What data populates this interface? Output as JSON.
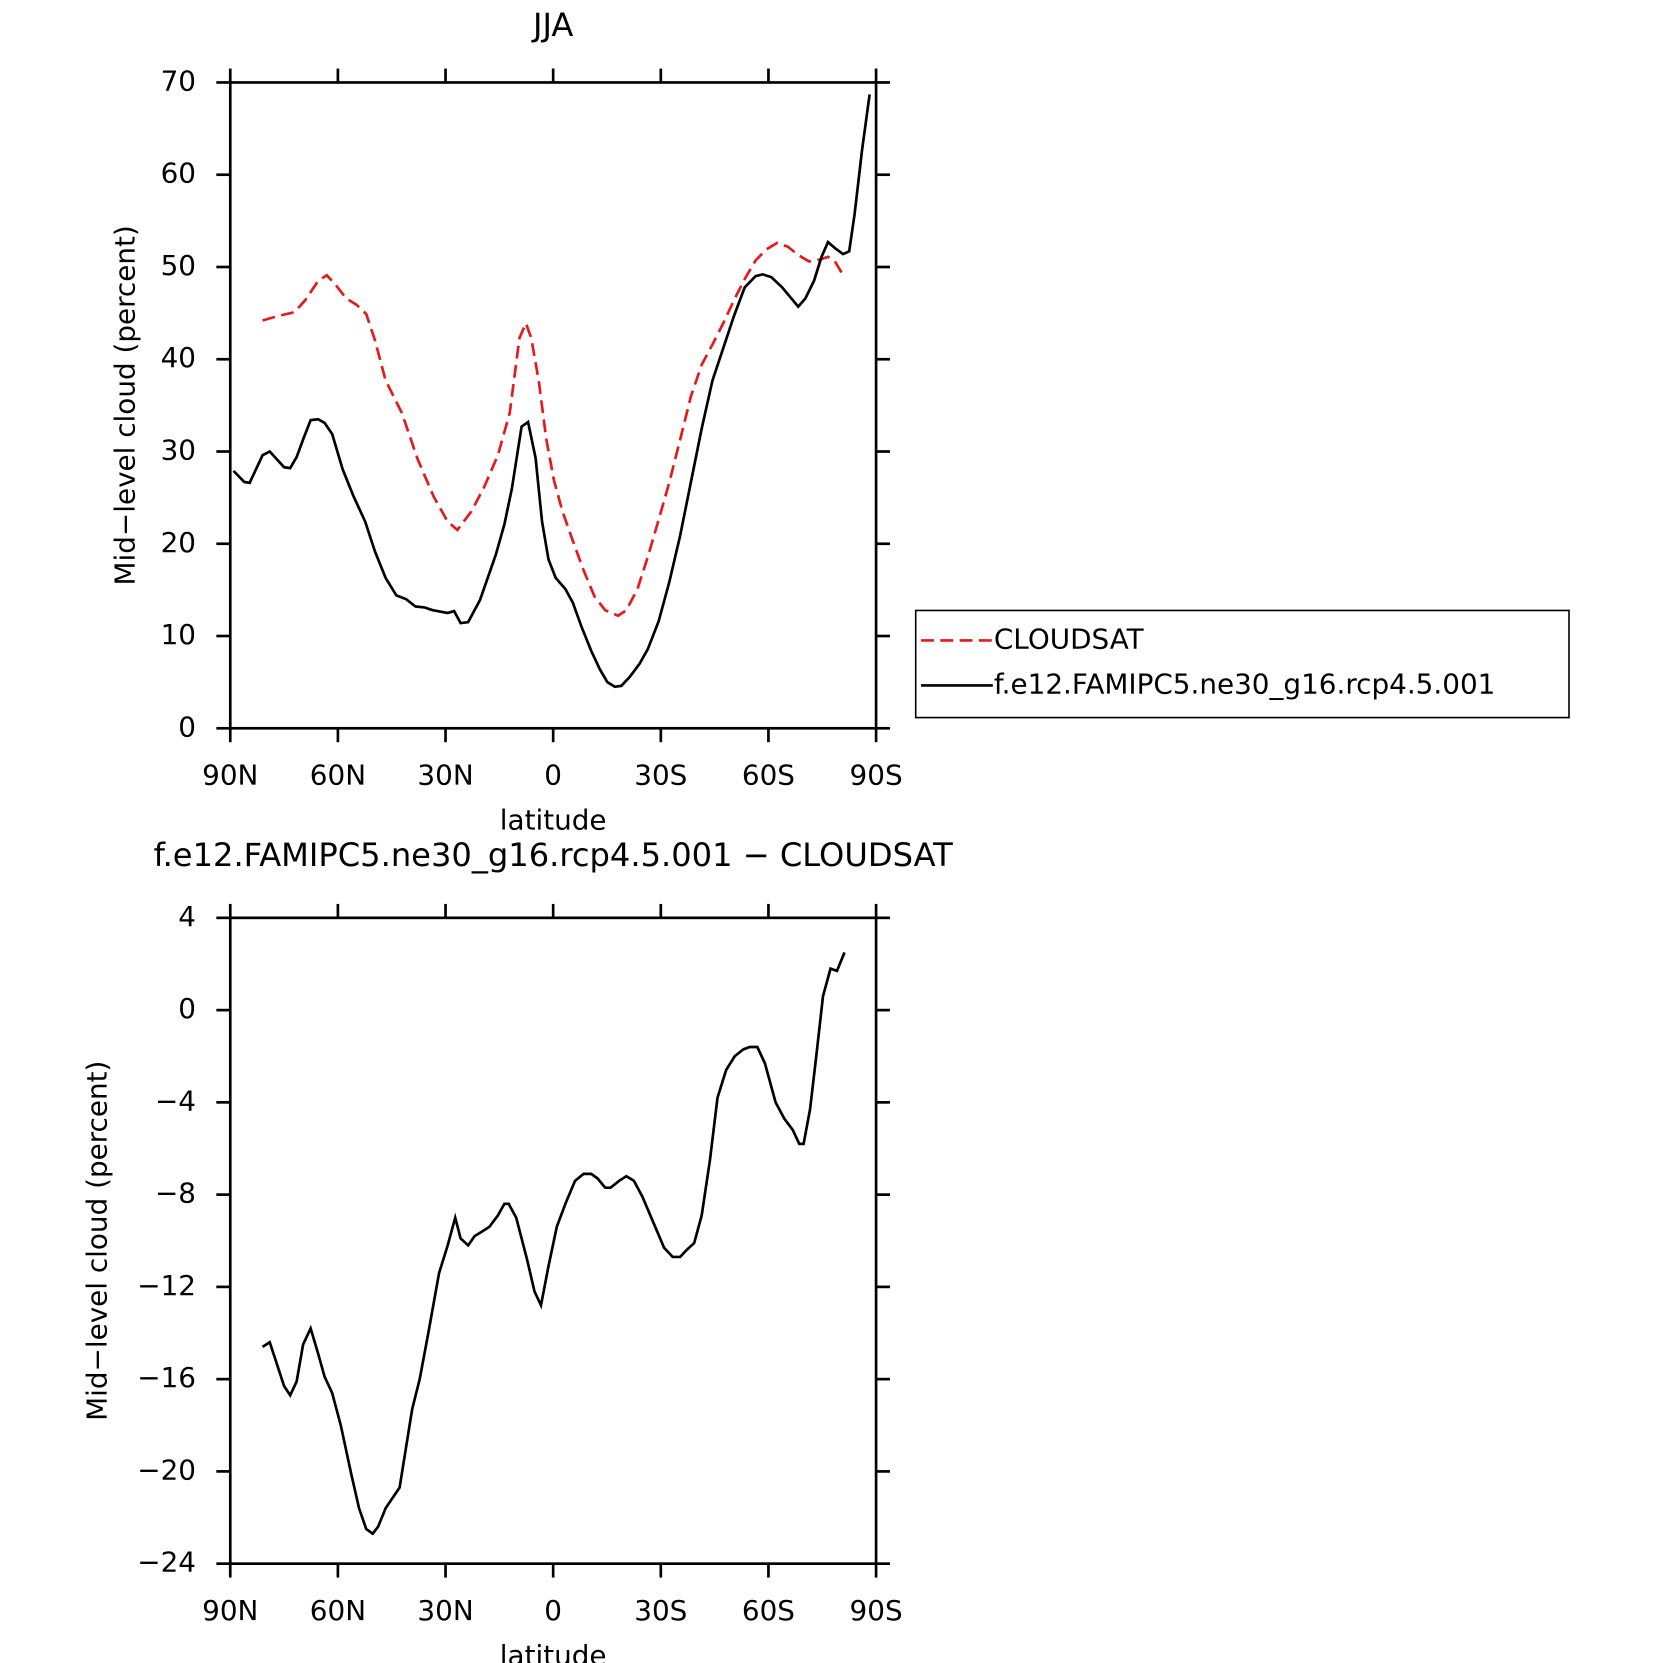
{
  "chart_data": [
    {
      "type": "line",
      "title": "JJA",
      "x_label": "latitude",
      "y_label": "Mid−level cloud (percent)",
      "xlim": [
        90,
        -90
      ],
      "xticks": [
        {
          "value": 90,
          "label": "90N"
        },
        {
          "value": 60,
          "label": "60N"
        },
        {
          "value": 30,
          "label": "30N"
        },
        0,
        {
          "value": -30,
          "label": "30S"
        },
        {
          "value": -60,
          "label": "60S"
        },
        {
          "value": -90,
          "label": "90S"
        }
      ],
      "ylim": [
        0,
        70
      ],
      "yticks": [
        0,
        10,
        20,
        30,
        40,
        50,
        60,
        70
      ],
      "legend": "outside-right",
      "series": [
        {
          "name": "CLOUDSAT",
          "color": "#e41a1c",
          "style": "dashed",
          "x": [
            81,
            76.6,
            72.1,
            69.1,
            65.5,
            63.1,
            60.7,
            57.7,
            54.8,
            52.1,
            49.7,
            46.7,
            42.2,
            37.8,
            33.3,
            29.4,
            26.7,
            22.8,
            19.3,
            15.4,
            12.1,
            9.4,
            7.6,
            6.1,
            4,
            1.9,
            -0.2,
            -2.6,
            -5.5,
            -8.5,
            -11.5,
            -14.5,
            -18.1,
            -20.4,
            -23.5,
            -26.4,
            -29.4,
            -32.4,
            -35.4,
            -38.4,
            -41.4,
            -44.4,
            -47.4,
            -50.4,
            -53.4,
            -56.4,
            -59.4,
            -62.4,
            -65.4,
            -68.3,
            -71.3,
            -74.3,
            -76.6,
            -78.7,
            -81
          ],
          "values": [
            44.2,
            44.7,
            45.1,
            46.4,
            48.5,
            49.1,
            48.1,
            46.6,
            45.9,
            44.9,
            42.1,
            37.7,
            34.2,
            29.2,
            25.1,
            22.4,
            21.5,
            23.5,
            26.1,
            29.6,
            34.2,
            42.3,
            43.9,
            42.3,
            37.6,
            31.3,
            26.9,
            23.5,
            20.3,
            17.1,
            14.3,
            12.8,
            12.2,
            12.8,
            15.1,
            18.6,
            22.6,
            26.7,
            31.3,
            36,
            39.4,
            41.6,
            43.9,
            46.4,
            48.7,
            50.7,
            51.9,
            52.6,
            52.2,
            51.3,
            50.6,
            50.8,
            51.1,
            50.5,
            49
          ]
        },
        {
          "name": "f.e12.FAMIPC5.ne30_g16.rcp4.5.001",
          "color": "#000000",
          "style": "solid",
          "x": [
            89.1,
            86.1,
            84.6,
            81,
            79,
            75,
            73.3,
            71.5,
            69.7,
            67.6,
            65.5,
            63.7,
            61.6,
            58.7,
            55.7,
            52.4,
            49.7,
            46.7,
            43.7,
            41,
            38.4,
            35.9,
            33.6,
            29.4,
            27.6,
            25.8,
            23.7,
            20.4,
            16,
            13.6,
            11.5,
            10.3,
            8.8,
            7,
            4.9,
            3.1,
            1.3,
            -0.7,
            -3.4,
            -5.5,
            -7.9,
            -10.6,
            -13,
            -15.1,
            -17.2,
            -19,
            -21.4,
            -24.1,
            -26.4,
            -29.4,
            -32.4,
            -35.4,
            -38.4,
            -41.4,
            -44.4,
            -47.4,
            -50.4,
            -53.4,
            -56.4,
            -58.4,
            -60.8,
            -63.8,
            -66.8,
            -68.3,
            -70.3,
            -72.7,
            -74.8,
            -76.6,
            -78.7,
            -80.8,
            -82.5,
            -84,
            -86.1,
            -88.2
          ],
          "values": [
            27.9,
            26.7,
            26.6,
            29.6,
            30,
            28.3,
            28.2,
            29.4,
            31.3,
            33.4,
            33.5,
            33.1,
            31.9,
            28.1,
            25.2,
            22.4,
            19.2,
            16.3,
            14.4,
            14,
            13.2,
            13.1,
            12.8,
            12.5,
            12.7,
            11.4,
            11.5,
            13.9,
            18.8,
            22.1,
            26,
            29,
            32.7,
            33.2,
            29.3,
            22.4,
            18.3,
            16.3,
            15.1,
            13.6,
            11,
            8.4,
            6.4,
            5,
            4.5,
            4.6,
            5.6,
            7,
            8.6,
            11.6,
            15.9,
            20.9,
            26.7,
            32.5,
            37.7,
            41.2,
            44.7,
            47.8,
            49,
            49.2,
            48.9,
            47.8,
            46.4,
            45.7,
            46.6,
            48.5,
            51.1,
            52.7,
            52,
            51.4,
            51.7,
            55.7,
            62.7,
            68.7
          ]
        }
      ]
    },
    {
      "type": "line",
      "title": "f.e12.FAMIPC5.ne30_g16.rcp4.5.001 − CLOUDSAT",
      "x_label": "latitude",
      "y_label": "Mid−level cloud (percent)",
      "xlim": [
        90,
        -90
      ],
      "xticks": [
        {
          "value": 90,
          "label": "90N"
        },
        {
          "value": 60,
          "label": "60N"
        },
        {
          "value": 30,
          "label": "30N"
        },
        0,
        {
          "value": -30,
          "label": "30S"
        },
        {
          "value": -60,
          "label": "60S"
        },
        {
          "value": -90,
          "label": "90S"
        }
      ],
      "ylim": [
        -24,
        4
      ],
      "yticks": [
        4,
        0,
        {
          "value": -4,
          "label": "−4"
        },
        {
          "value": -8,
          "label": "−8"
        },
        {
          "value": -12,
          "label": "−12"
        },
        {
          "value": -16,
          "label": "−16"
        },
        {
          "value": -20,
          "label": "−20"
        },
        {
          "value": -24,
          "label": "−24"
        }
      ],
      "series": [
        {
          "color": "#000000",
          "style": "solid",
          "x": [
            81,
            79,
            75,
            73.3,
            71.5,
            69.7,
            67.6,
            65.5,
            63.7,
            61.6,
            59.2,
            56.3,
            54.1,
            52.1,
            50.3,
            48.8,
            46.7,
            42.8,
            39.3,
            37.2,
            34.8,
            31.8,
            29.4,
            27.3,
            25.8,
            23.7,
            21.9,
            19.8,
            17.8,
            15.4,
            13.6,
            12.4,
            10.3,
            7.3,
            5.2,
            3.4,
            1.3,
            -1,
            -3.4,
            -6.1,
            -8.5,
            -10.6,
            -12.4,
            -14.5,
            -16,
            -18.4,
            -20.4,
            -22.5,
            -24.9,
            -27.9,
            -30.9,
            -33.3,
            -35.4,
            -37.2,
            -39.3,
            -41.4,
            -43.7,
            -45.8,
            -48.2,
            -50.6,
            -53,
            -54.8,
            -56.9,
            -59,
            -62,
            -64.4,
            -66.8,
            -68.6,
            -69.8,
            -71.6,
            -73.4,
            -75.2,
            -77.3,
            -79.1,
            -81.2
          ],
          "values": [
            -14.6,
            -14.4,
            -16.3,
            -16.7,
            -16.1,
            -14.5,
            -13.8,
            -14.9,
            -15.9,
            -16.6,
            -18,
            -20.1,
            -21.6,
            -22.5,
            -22.7,
            -22.4,
            -21.6,
            -20.7,
            -17.3,
            -16,
            -14,
            -11.4,
            -10.2,
            -9,
            -9.9,
            -10.2,
            -9.8,
            -9.6,
            -9.4,
            -8.9,
            -8.4,
            -8.4,
            -9,
            -10.8,
            -12.2,
            -12.8,
            -11.1,
            -9.4,
            -8.4,
            -7.4,
            -7.1,
            -7.1,
            -7.3,
            -7.7,
            -7.7,
            -7.4,
            -7.2,
            -7.4,
            -8.1,
            -9.2,
            -10.3,
            -10.7,
            -10.7,
            -10.4,
            -10.1,
            -8.9,
            -6.5,
            -3.8,
            -2.6,
            -2,
            -1.7,
            -1.6,
            -1.6,
            -2.3,
            -4,
            -4.7,
            -5.2,
            -5.8,
            -5.8,
            -4.3,
            -1.9,
            0.6,
            1.8,
            1.7,
            2.5
          ]
        }
      ]
    }
  ]
}
